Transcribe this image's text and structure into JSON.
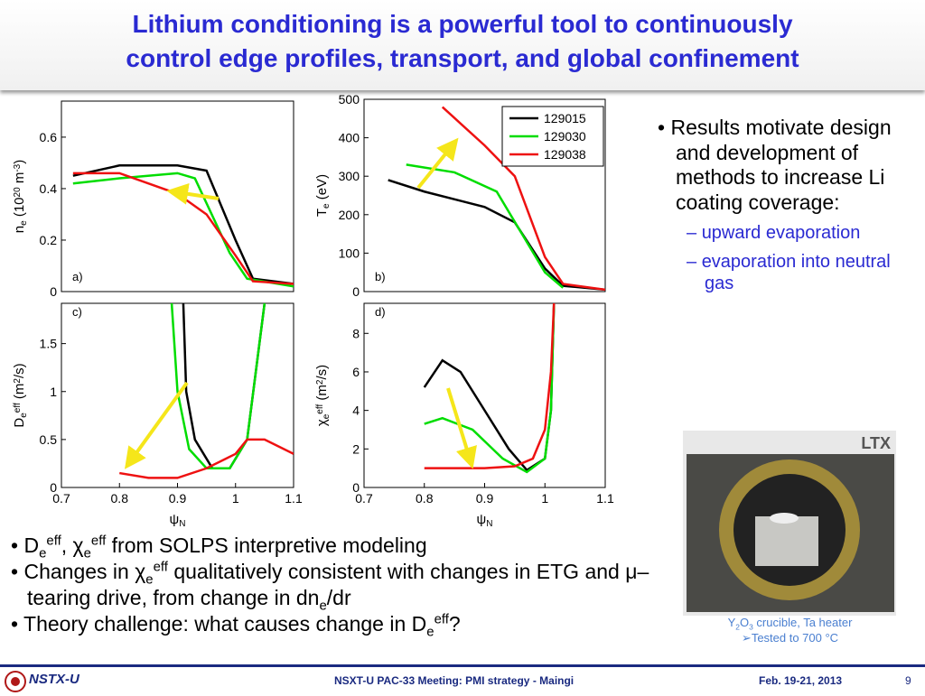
{
  "slide": {
    "title": [
      "Lithium conditioning is a powerful tool to continuously",
      "control edge profiles, transport, and global confinement"
    ],
    "right_bullet": "Results motivate design and development of methods to increase Li coating coverage:",
    "sub_bullets": [
      "upward evaporation",
      "evaporation into neutral gas"
    ],
    "bottom_bullets": [
      [
        {
          "text": "D"
        },
        {
          "text": "e",
          "script": "sub"
        },
        {
          "text": "eff",
          "script": "sup"
        },
        {
          "text": ", "
        },
        {
          "text": "χ"
        },
        {
          "text": "e",
          "script": "sub"
        },
        {
          "text": "eff",
          "script": "sup"
        },
        {
          "text": " from SOLPS interpretive modeling"
        }
      ],
      [
        {
          "text": "Changes in "
        },
        {
          "text": "χ"
        },
        {
          "text": "e",
          "script": "sub"
        },
        {
          "text": "eff",
          "script": "sup"
        },
        {
          "text": " qualitatively consistent with changes in ETG and "
        },
        {
          "text": "μ–tearing drive, from change in dn"
        },
        {
          "text": "e",
          "script": "sub"
        },
        {
          "text": "/dr"
        }
      ],
      [
        {
          "text": "Theory challenge: what causes change in D"
        },
        {
          "text": "e",
          "script": "sub"
        },
        {
          "text": "eff",
          "script": "sup"
        },
        {
          "text": "?"
        }
      ]
    ],
    "photo_label": "LTX",
    "photo_caption": [
      [
        {
          "text": "Y"
        },
        {
          "text": "2",
          "script": "sub"
        },
        {
          "text": "O"
        },
        {
          "text": "3",
          "script": "sub"
        },
        {
          "text": " crucible, Ta heater"
        }
      ],
      [
        {
          "text": "➢Tested to 700 °C"
        }
      ]
    ],
    "footer": {
      "logo": "NSTX-U",
      "center": "NSXT-U PAC-33 Meeting: PMI strategy - Maingi",
      "date": "Feb. 19-21, 2013",
      "page": "9"
    }
  },
  "chart_data": [
    {
      "type": "line",
      "label": "a)",
      "xlim": [
        0.7,
        1.1
      ],
      "ylim": [
        0,
        0.74
      ],
      "yticks": [
        0,
        0.2,
        0.4,
        0.6
      ],
      "ylabel": [
        {
          "text": "n"
        },
        {
          "text": "e",
          "script": "sub"
        },
        {
          "text": " (10"
        },
        {
          "text": "20",
          "script": "sup"
        },
        {
          "text": " m"
        },
        {
          "text": "-3",
          "script": "sup"
        },
        {
          "text": ")"
        }
      ],
      "series": [
        {
          "color": "#000000",
          "x": [
            0.72,
            0.8,
            0.9,
            0.95,
            1.0,
            1.03,
            1.1
          ],
          "values": [
            0.45,
            0.49,
            0.49,
            0.47,
            0.2,
            0.05,
            0.03
          ]
        },
        {
          "color": "#00dd00",
          "x": [
            0.72,
            0.8,
            0.9,
            0.93,
            0.99,
            1.02,
            1.1
          ],
          "values": [
            0.42,
            0.44,
            0.46,
            0.44,
            0.15,
            0.05,
            0.02
          ]
        },
        {
          "color": "#ee1111",
          "x": [
            0.72,
            0.8,
            0.9,
            0.95,
            1.0,
            1.03,
            1.1
          ],
          "values": [
            0.46,
            0.46,
            0.38,
            0.3,
            0.14,
            0.04,
            0.03
          ]
        }
      ]
    },
    {
      "type": "line",
      "label": "b)",
      "xlim": [
        0.7,
        1.1
      ],
      "ylim": [
        0,
        500
      ],
      "yticks": [
        0,
        100,
        200,
        300,
        400,
        500
      ],
      "legend": "upper right",
      "ylabel": [
        {
          "text": "T"
        },
        {
          "text": "e",
          "script": "sub"
        },
        {
          "text": " (eV)"
        }
      ],
      "series": [
        {
          "name": "129015",
          "color": "#000000",
          "x": [
            0.74,
            0.8,
            0.9,
            0.95,
            1.0,
            1.03,
            1.1
          ],
          "values": [
            290,
            260,
            220,
            180,
            60,
            15,
            5
          ]
        },
        {
          "name": "129030",
          "color": "#00dd00",
          "x": [
            0.77,
            0.85,
            0.92,
            1.0,
            1.03
          ],
          "values": [
            330,
            310,
            260,
            50,
            10
          ]
        },
        {
          "name": "129038",
          "color": "#ee1111",
          "x": [
            0.83,
            0.9,
            0.95,
            1.0,
            1.03,
            1.1
          ],
          "values": [
            480,
            380,
            300,
            90,
            20,
            5
          ]
        }
      ]
    },
    {
      "type": "line",
      "label": "c)",
      "xlim": [
        0.7,
        1.1
      ],
      "ylim": [
        0,
        1.92
      ],
      "yticks": [
        0,
        0.5,
        1,
        1.5
      ],
      "xticks": [
        0.7,
        0.8,
        0.9,
        1,
        1.1
      ],
      "xlabel": [
        {
          "text": "ψ"
        },
        {
          "text": "N",
          "script": "sub"
        }
      ],
      "ylabel": [
        {
          "text": "D"
        },
        {
          "text": "e",
          "script": "sub"
        },
        {
          "text": "eff",
          "script": "sup"
        },
        {
          "text": " (m"
        },
        {
          "text": "2",
          "script": "sup"
        },
        {
          "text": "/s)"
        }
      ],
      "series": [
        {
          "color": "#000000",
          "x": [
            0.91,
            0.915,
            0.93,
            0.96,
            0.99,
            1.02,
            1.05
          ],
          "values": [
            1.92,
            1.0,
            0.5,
            0.2,
            0.2,
            0.5,
            1.92
          ]
        },
        {
          "color": "#00dd00",
          "x": [
            0.89,
            0.9,
            0.92,
            0.95,
            0.99,
            1.02,
            1.05
          ],
          "values": [
            1.92,
            1.0,
            0.4,
            0.2,
            0.2,
            0.5,
            1.92
          ]
        },
        {
          "color": "#ee1111",
          "x": [
            0.8,
            0.85,
            0.9,
            0.95,
            1.0,
            1.02,
            1.05,
            1.1
          ],
          "values": [
            0.15,
            0.1,
            0.1,
            0.2,
            0.35,
            0.5,
            0.5,
            0.35
          ]
        }
      ]
    },
    {
      "type": "line",
      "label": "d)",
      "xlim": [
        0.7,
        1.1
      ],
      "ylim": [
        0,
        9.56
      ],
      "yticks": [
        0,
        2,
        4,
        6,
        8
      ],
      "xticks": [
        0.7,
        0.8,
        0.9,
        1,
        1.1
      ],
      "xlabel": [
        {
          "text": "ψ"
        },
        {
          "text": "N",
          "script": "sub"
        }
      ],
      "ylabel": [
        {
          "text": "χ"
        },
        {
          "text": "e",
          "script": "sub"
        },
        {
          "text": "eff",
          "script": "sup"
        },
        {
          "text": " (m"
        },
        {
          "text": "2",
          "script": "sup"
        },
        {
          "text": "/s)"
        }
      ],
      "series": [
        {
          "color": "#000000",
          "x": [
            0.8,
            0.83,
            0.86,
            0.9,
            0.94,
            0.97,
            1.0,
            1.01,
            1.015
          ],
          "values": [
            5.2,
            6.6,
            6.0,
            4.0,
            2.0,
            0.9,
            1.5,
            4,
            9.56
          ]
        },
        {
          "color": "#00dd00",
          "x": [
            0.8,
            0.83,
            0.88,
            0.93,
            0.97,
            1.0,
            1.01,
            1.015
          ],
          "values": [
            3.3,
            3.6,
            3.0,
            1.5,
            0.8,
            1.5,
            4,
            9.56
          ]
        },
        {
          "color": "#ee1111",
          "x": [
            0.8,
            0.85,
            0.9,
            0.95,
            0.98,
            1.0,
            1.01,
            1.015
          ],
          "values": [
            1.0,
            1.0,
            1.0,
            1.1,
            1.5,
            3,
            6,
            9.56
          ]
        }
      ]
    }
  ]
}
